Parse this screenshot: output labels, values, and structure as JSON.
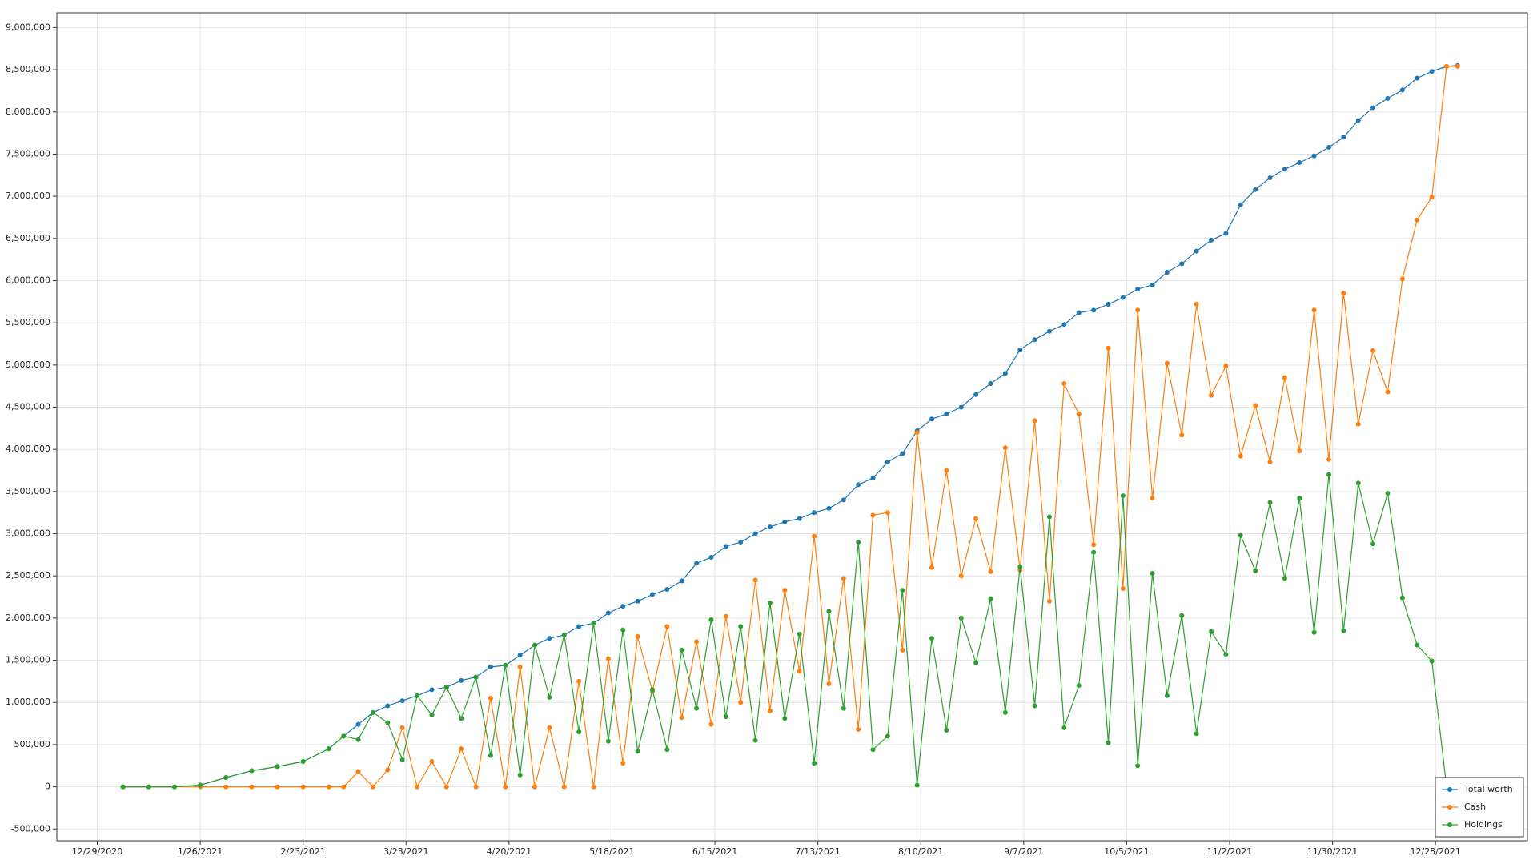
{
  "chart_data": {
    "type": "line",
    "x": [
      "1/5/2021",
      "1/12/2021",
      "1/19/2021",
      "1/26/2021",
      "2/2/2021",
      "2/9/2021",
      "2/16/2021",
      "2/23/2021",
      "3/2/2021",
      "3/6/2021",
      "3/10/2021",
      "3/14/2021",
      "3/18/2021",
      "3/22/2021",
      "3/26/2021",
      "3/30/2021",
      "4/3/2021",
      "4/7/2021",
      "4/11/2021",
      "4/15/2021",
      "4/19/2021",
      "4/23/2021",
      "4/27/2021",
      "5/1/2021",
      "5/5/2021",
      "5/9/2021",
      "5/13/2021",
      "5/17/2021",
      "5/21/2021",
      "5/25/2021",
      "5/29/2021",
      "6/2/2021",
      "6/6/2021",
      "6/10/2021",
      "6/14/2021",
      "6/18/2021",
      "6/22/2021",
      "6/26/2021",
      "6/30/2021",
      "7/4/2021",
      "7/8/2021",
      "7/12/2021",
      "7/16/2021",
      "7/20/2021",
      "7/24/2021",
      "7/28/2021",
      "8/1/2021",
      "8/5/2021",
      "8/9/2021",
      "8/13/2021",
      "8/17/2021",
      "8/21/2021",
      "8/25/2021",
      "8/29/2021",
      "9/2/2021",
      "9/6/2021",
      "9/10/2021",
      "9/14/2021",
      "9/18/2021",
      "9/22/2021",
      "9/26/2021",
      "9/30/2021",
      "10/4/2021",
      "10/8/2021",
      "10/12/2021",
      "10/16/2021",
      "10/20/2021",
      "10/24/2021",
      "10/28/2021",
      "11/1/2021",
      "11/5/2021",
      "11/9/2021",
      "11/13/2021",
      "11/17/2021",
      "11/21/2021",
      "11/25/2021",
      "11/29/2021",
      "12/3/2021",
      "12/7/2021",
      "12/11/2021",
      "12/15/2021",
      "12/19/2021",
      "12/23/2021",
      "12/27/2021",
      "12/31/2021",
      "1/3/2022"
    ],
    "series": [
      {
        "name": "Total worth",
        "color": "#1f77b4",
        "values": [
          0,
          0,
          0,
          20000,
          110000,
          190000,
          240000,
          300000,
          450000,
          600000,
          740000,
          880000,
          960000,
          1020000,
          1080000,
          1150000,
          1180000,
          1260000,
          1300000,
          1420000,
          1440000,
          1560000,
          1680000,
          1760000,
          1800000,
          1900000,
          1940000,
          2060000,
          2140000,
          2200000,
          2280000,
          2340000,
          2440000,
          2650000,
          2720000,
          2850000,
          2900000,
          3000000,
          3080000,
          3140000,
          3180000,
          3250000,
          3300000,
          3400000,
          3580000,
          3660000,
          3850000,
          3950000,
          4220000,
          4360000,
          4420000,
          4500000,
          4650000,
          4780000,
          4900000,
          5180000,
          5300000,
          5400000,
          5480000,
          5620000,
          5650000,
          5720000,
          5800000,
          5900000,
          5950000,
          6100000,
          6200000,
          6350000,
          6480000,
          6560000,
          6900000,
          7080000,
          7220000,
          7320000,
          7400000,
          7480000,
          7580000,
          7700000,
          7900000,
          8050000,
          8160000,
          8260000,
          8400000,
          8480000,
          8540000,
          8550000
        ]
      },
      {
        "name": "Cash",
        "color": "#ff7f0e",
        "values": [
          0,
          0,
          0,
          0,
          0,
          0,
          0,
          0,
          0,
          0,
          180000,
          0,
          200000,
          700000,
          0,
          300000,
          0,
          450000,
          0,
          1050000,
          0,
          1420000,
          0,
          700000,
          0,
          1250000,
          0,
          1520000,
          280000,
          1780000,
          1130000,
          1900000,
          820000,
          1720000,
          740000,
          2020000,
          1000000,
          2450000,
          900000,
          2330000,
          1370000,
          2970000,
          1220000,
          2470000,
          680000,
          3220000,
          3250000,
          1620000,
          4200000,
          2600000,
          3750000,
          2500000,
          3180000,
          2550000,
          4020000,
          2570000,
          4340000,
          2200000,
          4780000,
          4420000,
          2870000,
          5200000,
          2350000,
          5650000,
          3420000,
          5020000,
          4170000,
          5720000,
          4640000,
          4990000,
          3920000,
          4520000,
          3850000,
          4850000,
          3980000,
          5650000,
          3880000,
          5850000,
          4300000,
          5170000,
          4680000,
          6020000,
          6720000,
          6990000,
          8540000,
          8540000
        ]
      },
      {
        "name": "Holdings",
        "color": "#2ca02c",
        "values": [
          0,
          0,
          0,
          20000,
          110000,
          190000,
          240000,
          300000,
          450000,
          600000,
          560000,
          880000,
          760000,
          320000,
          1080000,
          850000,
          1180000,
          810000,
          1300000,
          370000,
          1440000,
          140000,
          1680000,
          1060000,
          1800000,
          650000,
          1940000,
          540000,
          1860000,
          420000,
          1150000,
          440000,
          1620000,
          930000,
          1980000,
          830000,
          1900000,
          550000,
          2180000,
          810000,
          1810000,
          280000,
          2080000,
          930000,
          2900000,
          440000,
          600000,
          2330000,
          20000,
          1760000,
          670000,
          2000000,
          1470000,
          2230000,
          880000,
          2610000,
          960000,
          3200000,
          700000,
          1200000,
          2780000,
          520000,
          3450000,
          250000,
          2530000,
          1080000,
          2030000,
          630000,
          1840000,
          1570000,
          2980000,
          2560000,
          3370000,
          2470000,
          3420000,
          1830000,
          3700000,
          1850000,
          3600000,
          2880000,
          3480000,
          2240000,
          1680000,
          1490000,
          0,
          10000
        ]
      }
    ],
    "xlim": [
      "12/18/2020",
      "1/22/2022"
    ],
    "xticks": [
      "12/29/2020",
      "1/26/2021",
      "2/23/2021",
      "3/23/2021",
      "4/20/2021",
      "5/18/2021",
      "6/15/2021",
      "7/13/2021",
      "8/10/2021",
      "9/7/2021",
      "10/5/2021",
      "11/2/2021",
      "11/30/2021",
      "12/28/2021"
    ],
    "ylim": [
      -640000,
      9175000
    ],
    "yticks": [
      {
        "value": -500000,
        "label": "-500,000"
      },
      0,
      {
        "value": 500000,
        "label": "500,000"
      },
      {
        "value": 1000000,
        "label": "1,000,000"
      },
      {
        "value": 1500000,
        "label": "1,500,000"
      },
      {
        "value": 2000000,
        "label": "2,000,000"
      },
      {
        "value": 2500000,
        "label": "2,500,000"
      },
      {
        "value": 3000000,
        "label": "3,000,000"
      },
      {
        "value": 3500000,
        "label": "3,500,000"
      },
      {
        "value": 4000000,
        "label": "4,000,000"
      },
      {
        "value": 4500000,
        "label": "4,500,000"
      },
      {
        "value": 5000000,
        "label": "5,000,000"
      },
      {
        "value": 5500000,
        "label": "5,500,000"
      },
      {
        "value": 6000000,
        "label": "6,000,000"
      },
      {
        "value": 6500000,
        "label": "6,500,000"
      },
      {
        "value": 7000000,
        "label": "7,000,000"
      },
      {
        "value": 7500000,
        "label": "7,500,000"
      },
      {
        "value": 8000000,
        "label": "8,000,000"
      },
      {
        "value": 8500000,
        "label": "8,500,000"
      },
      {
        "value": 9000000,
        "label": "9,000,000"
      }
    ],
    "grid": true,
    "legend": "lower right"
  }
}
